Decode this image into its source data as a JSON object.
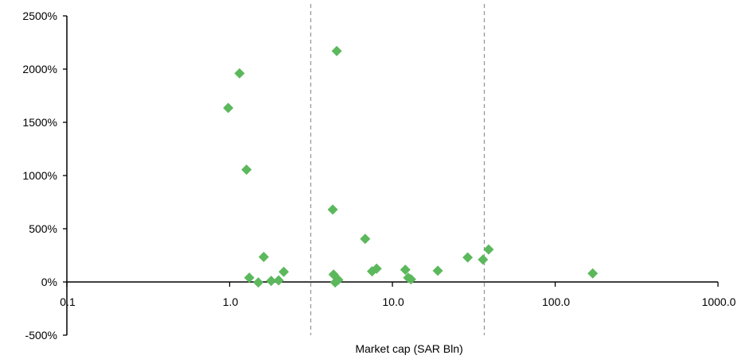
{
  "chart_data": {
    "type": "scatter",
    "title": "",
    "xlabel": "Market cap (SAR Bln)",
    "ylabel": "",
    "x_scale": "log",
    "xlim": [
      0.1,
      1000
    ],
    "ylim": [
      -500,
      2500
    ],
    "grid": false,
    "legend": "none",
    "marker": "diamond",
    "colors": {
      "marker": "#5cb85c",
      "axis": "#000000",
      "reference_line": "#999999"
    },
    "x_ticks": [
      0.1,
      1,
      10,
      100,
      1000
    ],
    "x_tick_labels": [
      "0.1",
      "1.0",
      "10.0",
      "100.0",
      "1000.0"
    ],
    "y_ticks": [
      -500,
      0,
      500,
      1000,
      1500,
      2000,
      2500
    ],
    "y_tick_labels": [
      "-500%",
      "0%",
      "500%",
      "1000%",
      "1500%",
      "2000%",
      "2500%"
    ],
    "reference_lines_x": [
      3.15,
      36.7
    ],
    "points": [
      {
        "x": 0.98,
        "y": 1635
      },
      {
        "x": 1.15,
        "y": 1960
      },
      {
        "x": 1.27,
        "y": 1055
      },
      {
        "x": 1.32,
        "y": 40
      },
      {
        "x": 1.5,
        "y": -5
      },
      {
        "x": 1.62,
        "y": 235
      },
      {
        "x": 1.8,
        "y": 10
      },
      {
        "x": 2.0,
        "y": 15
      },
      {
        "x": 2.15,
        "y": 95
      },
      {
        "x": 4.3,
        "y": 680
      },
      {
        "x": 4.35,
        "y": 70
      },
      {
        "x": 4.45,
        "y": -5
      },
      {
        "x": 4.55,
        "y": 2170
      },
      {
        "x": 4.65,
        "y": 20
      },
      {
        "x": 6.8,
        "y": 405
      },
      {
        "x": 7.5,
        "y": 100
      },
      {
        "x": 8.0,
        "y": 125
      },
      {
        "x": 12.0,
        "y": 115
      },
      {
        "x": 12.5,
        "y": 40
      },
      {
        "x": 13.0,
        "y": 25
      },
      {
        "x": 19.0,
        "y": 105
      },
      {
        "x": 29.0,
        "y": 230
      },
      {
        "x": 36.0,
        "y": 210
      },
      {
        "x": 39.0,
        "y": 305
      },
      {
        "x": 170.0,
        "y": 80
      }
    ]
  }
}
